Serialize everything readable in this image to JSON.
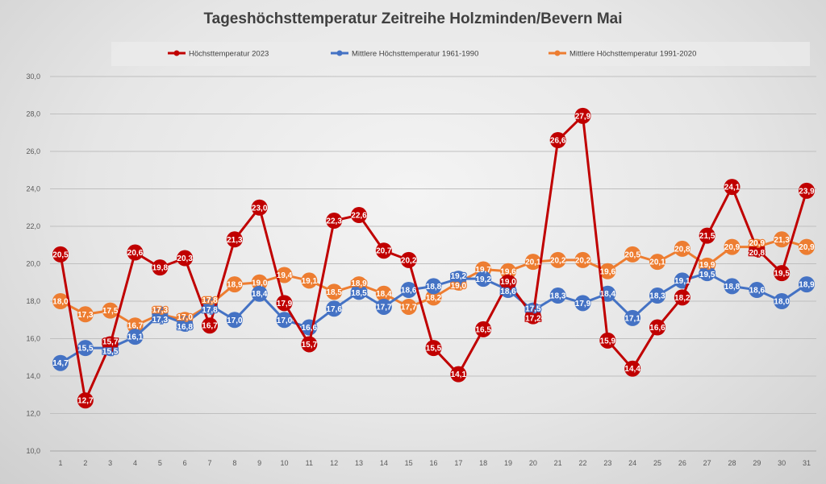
{
  "chart_data": {
    "type": "line",
    "title": "Tageshöchsttemperatur Zeitreihe Holzminden/Bevern Mai",
    "xlabel": "",
    "ylabel": "",
    "ylim": [
      10,
      30
    ],
    "yticks": [
      "10,0",
      "12,0",
      "14,0",
      "16,0",
      "18,0",
      "20,0",
      "22,0",
      "24,0",
      "26,0",
      "28,0",
      "30,0"
    ],
    "grid": true,
    "legend_position": "top",
    "x": [
      1,
      2,
      3,
      4,
      5,
      6,
      7,
      8,
      9,
      10,
      11,
      12,
      13,
      14,
      15,
      16,
      17,
      18,
      19,
      20,
      21,
      22,
      23,
      24,
      25,
      26,
      27,
      28,
      29,
      30,
      31
    ],
    "series": [
      {
        "name": "Mittlere Höchsttemperatur 1991-2020",
        "color": "#ed7d31",
        "values": [
          18.0,
          17.3,
          17.5,
          16.7,
          17.3,
          17.0,
          17.8,
          18.9,
          19.0,
          19.4,
          19.1,
          18.5,
          18.9,
          18.4,
          17.7,
          18.2,
          19.0,
          19.7,
          19.6,
          20.1,
          20.2,
          20.2,
          19.6,
          20.5,
          20.1,
          20.8,
          19.9,
          20.9,
          20.9,
          21.3,
          20.9
        ]
      },
      {
        "name": "Mittlere Höchsttemperatur 1961-1990",
        "color": "#4472c4",
        "values": [
          14.7,
          15.5,
          15.5,
          16.1,
          17.3,
          16.8,
          17.8,
          17.0,
          18.4,
          17.0,
          16.6,
          17.6,
          18.5,
          17.7,
          18.6,
          18.8,
          19.2,
          19.2,
          18.6,
          17.5,
          18.3,
          17.9,
          18.4,
          17.1,
          18.3,
          19.1,
          19.5,
          18.8,
          18.6,
          18.0,
          18.9
        ]
      },
      {
        "name": "Höchsttemperatur 2023",
        "color": "#c00000",
        "values": [
          20.5,
          12.7,
          15.7,
          20.6,
          19.8,
          20.3,
          16.7,
          21.3,
          23.0,
          17.9,
          15.7,
          22.3,
          22.6,
          20.7,
          20.2,
          15.5,
          14.1,
          16.5,
          19.0,
          17.2,
          26.6,
          27.9,
          15.9,
          14.4,
          16.6,
          18.2,
          21.5,
          24.1,
          20.8,
          19.5,
          23.9
        ]
      }
    ],
    "legend_order": [
      "Höchsttemperatur 2023",
      "Mittlere Höchsttemperatur 1961-1990",
      "Mittlere Höchsttemperatur 1991-2020"
    ]
  }
}
